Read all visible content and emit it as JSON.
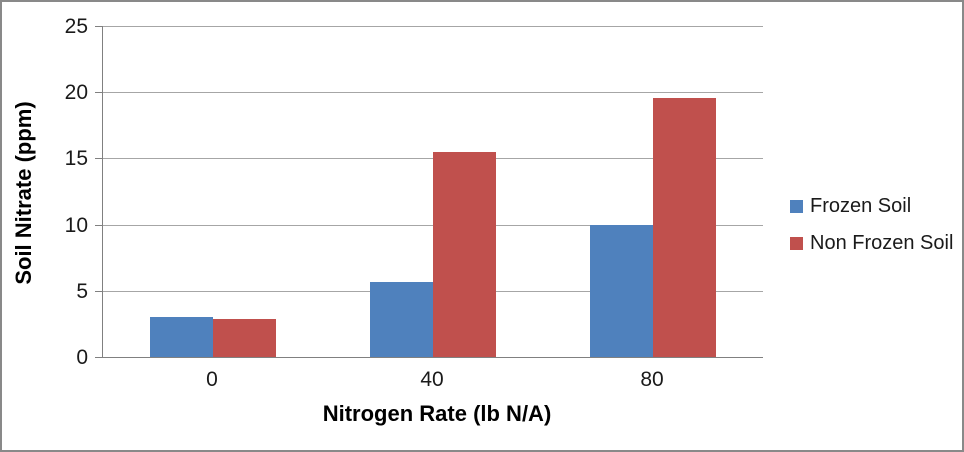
{
  "colors": {
    "frozen_soil": "#4F81BD",
    "non_frozen_soil": "#C0504D",
    "axis_line": "#808080",
    "gridline": "#A6A6A6",
    "frame_border": "#898989",
    "text": "#1A1A1A"
  },
  "chart_data": {
    "type": "bar",
    "categories": [
      "0",
      "40",
      "80"
    ],
    "series": [
      {
        "name": "Frozen Soil",
        "color": "#4F81BD",
        "values": [
          3.0,
          5.7,
          10.0
        ]
      },
      {
        "name": "Non Frozen Soil",
        "color": "#C0504D",
        "values": [
          2.9,
          15.5,
          19.6
        ]
      }
    ],
    "title": "",
    "xlabel": "Nitrogen Rate (lb N/A)",
    "ylabel": "Soil Nitrate (ppm)",
    "ylim": [
      0,
      25
    ],
    "yticks": [
      0,
      5,
      10,
      15,
      20,
      25
    ],
    "grid": true,
    "legend_position": "right"
  }
}
